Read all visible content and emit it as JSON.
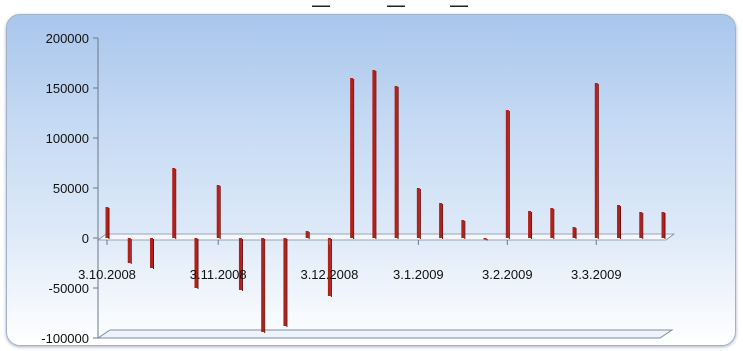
{
  "chart_data": {
    "type": "bar",
    "title": "",
    "xlabel": "",
    "ylabel": "",
    "ylim": [
      -100000,
      200000
    ],
    "yticks": [
      200000,
      150000,
      100000,
      50000,
      0,
      -50000,
      -100000
    ],
    "grid": false,
    "legend": "none",
    "bar_color": "#b1201a",
    "x_tick_labels": [
      {
        "label": "3.10.2008",
        "bar_index": 0
      },
      {
        "label": "3.11.2008",
        "bar_index": 5
      },
      {
        "label": "3.12.2008",
        "bar_index": 10
      },
      {
        "label": "3.1.2009",
        "bar_index": 14
      },
      {
        "label": "3.2.2009",
        "bar_index": 18
      },
      {
        "label": "3.3.2009",
        "bar_index": 22
      }
    ],
    "values": [
      31000,
      -25000,
      -30000,
      70000,
      -50000,
      53000,
      -52000,
      -94000,
      -88000,
      7000,
      -58000,
      160000,
      168000,
      152000,
      50000,
      35000,
      18000,
      -1500,
      128000,
      27000,
      30000,
      11000,
      155000,
      33000,
      26000,
      26000
    ]
  }
}
